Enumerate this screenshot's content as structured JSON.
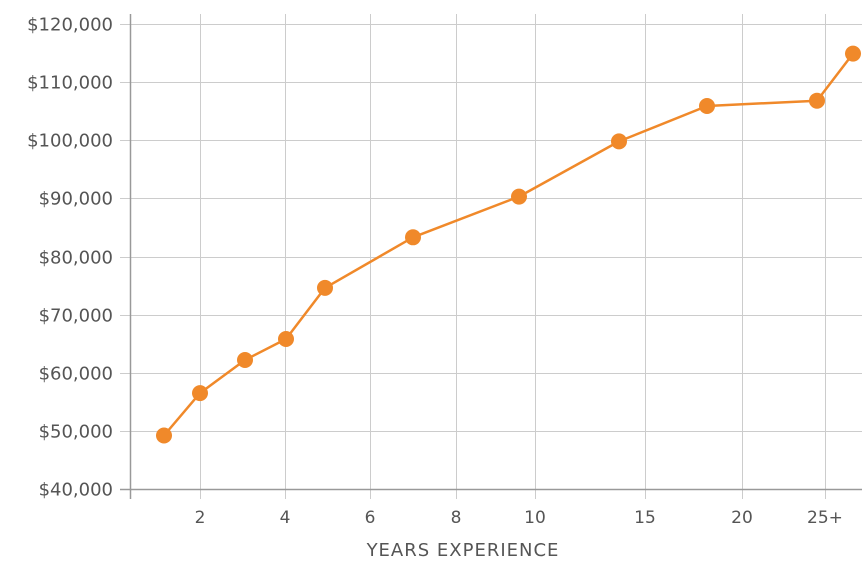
{
  "chart_data": {
    "type": "line",
    "title": "",
    "xlabel": "YEARS EXPERIENCE",
    "ylabel": "",
    "ylim": [
      40000,
      120000
    ],
    "grid": true,
    "y_ticks": [
      {
        "value": 40000,
        "label": "$40,000"
      },
      {
        "value": 50000,
        "label": "$50,000"
      },
      {
        "value": 60000,
        "label": "$60,000"
      },
      {
        "value": 70000,
        "label": "$70,000"
      },
      {
        "value": 80000,
        "label": "$80,000"
      },
      {
        "value": 90000,
        "label": "$90,000"
      },
      {
        "value": 100000,
        "label": "$100,000"
      },
      {
        "value": 110000,
        "label": "$110,000"
      },
      {
        "value": 120000,
        "label": "$120,000"
      }
    ],
    "x_ticks": [
      "2",
      "4",
      "6",
      "8",
      "10",
      "15",
      "20",
      "25+"
    ],
    "series": [
      {
        "color": "#F0892A",
        "points": [
          {
            "x": "1",
            "y": 49200
          },
          {
            "x": "2",
            "y": 56500
          },
          {
            "x": "3",
            "y": 62200
          },
          {
            "x": "4",
            "y": 65800
          },
          {
            "x": "5",
            "y": 74600
          },
          {
            "x": "7",
            "y": 83300
          },
          {
            "x": "9.5",
            "y": 90300
          },
          {
            "x": "14",
            "y": 99800
          },
          {
            "x": "18",
            "y": 105900
          },
          {
            "x": "23",
            "y": 106800
          },
          {
            "x": "26",
            "y": 114900
          }
        ]
      }
    ]
  }
}
